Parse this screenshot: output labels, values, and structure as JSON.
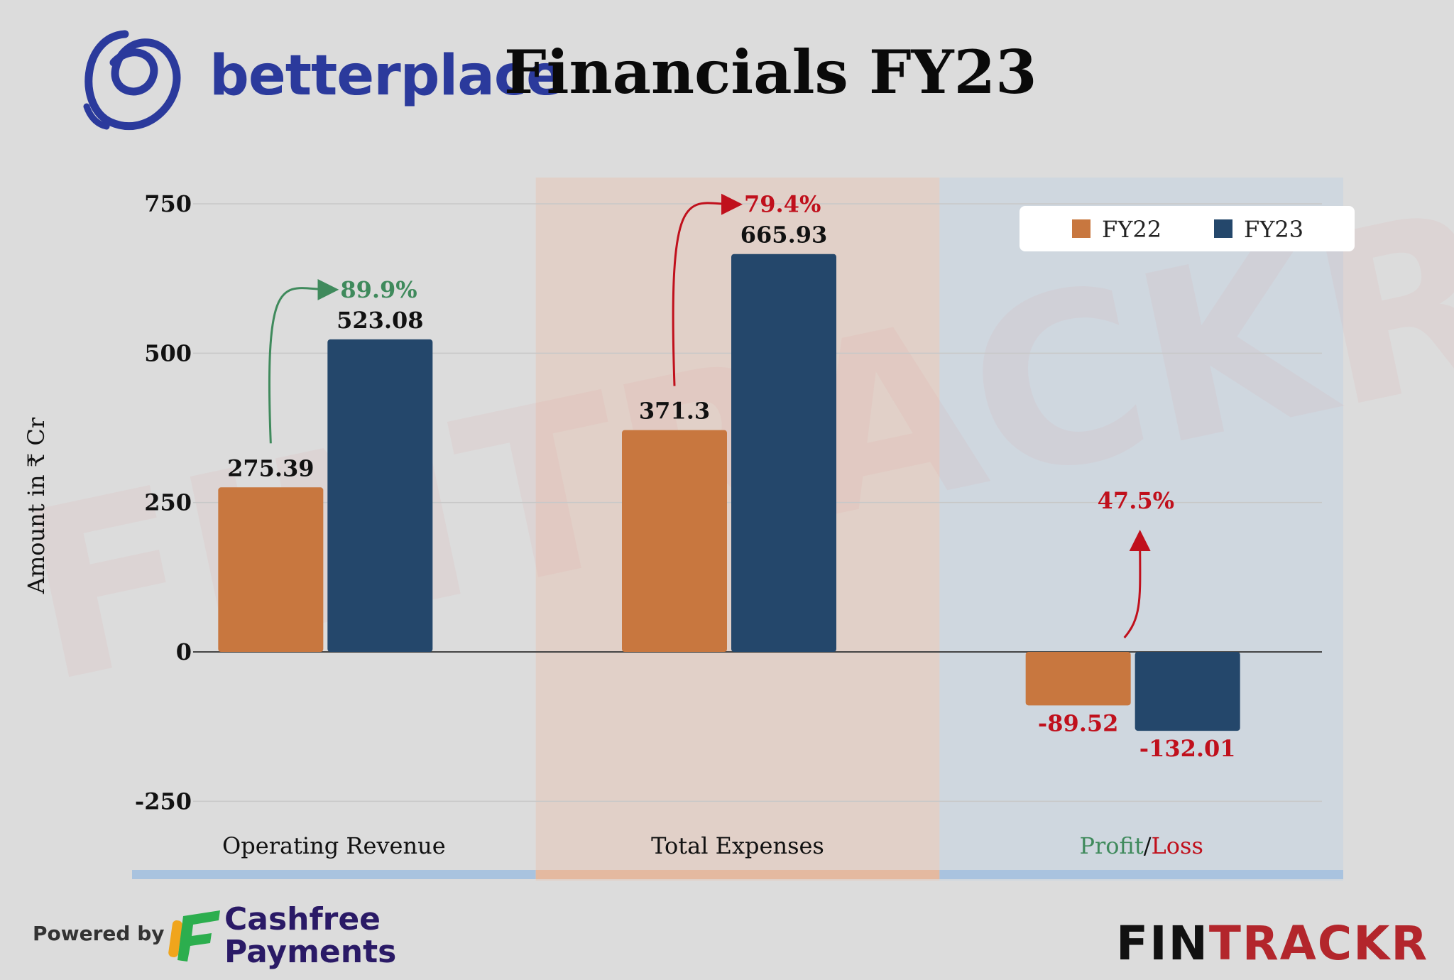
{
  "header": {
    "brand": "betterplace",
    "title": "Financials FY23"
  },
  "footer": {
    "powered_by": "Powered by",
    "sponsor_line1": "Cashfree",
    "sponsor_line2": "Payments",
    "publisher_part1": "FIN",
    "publisher_part2": "TRACKR"
  },
  "watermark": "FINTRACKR",
  "colors": {
    "fy22": "#c8773f",
    "fy23": "#24476b",
    "growth_green": "#3f8a5c",
    "loss_red": "#c0101c",
    "brand_blue": "#2b3a9c",
    "band_revenue": "#a9c3df",
    "band_expenses": "#e4b9a0",
    "band_profit": "#a9c3df"
  },
  "chart_data": {
    "type": "bar",
    "ylabel": "Amount in ₹ Cr",
    "ylim": [
      -250,
      750
    ],
    "yticks": [
      {
        "value": 750,
        "label": "750"
      },
      {
        "value": 500,
        "label": "500"
      },
      {
        "value": 250,
        "label": "250"
      },
      {
        "value": 0,
        "label": "0"
      },
      {
        "value": -250,
        "label": "-250"
      }
    ],
    "grid": true,
    "legend_position": "top-right",
    "categories": [
      "Operating Revenue",
      "Total Expenses",
      "Profit/Loss"
    ],
    "category_label_parts": [
      [
        {
          "text": "Operating Revenue",
          "color": "#111111"
        }
      ],
      [
        {
          "text": "Total Expenses",
          "color": "#111111"
        }
      ],
      [
        {
          "text": "Profit",
          "color": "#3f8a5c"
        },
        {
          "text": "/",
          "color": "#111111"
        },
        {
          "text": "Loss",
          "color": "#c0101c"
        }
      ]
    ],
    "series": [
      {
        "name": "FY22",
        "color": "#c8773f",
        "values": [
          275.39,
          371.3,
          -89.52
        ],
        "labels": [
          "275.39",
          "371.3",
          "-89.52"
        ]
      },
      {
        "name": "FY23",
        "color": "#24476b",
        "values": [
          523.08,
          665.93,
          -132.01
        ],
        "labels": [
          "523.08",
          "665.93",
          "-132.01"
        ]
      }
    ],
    "changes": [
      {
        "label": "89.9%",
        "color": "#3f8a5c"
      },
      {
        "label": "79.4%",
        "color": "#c0101c"
      },
      {
        "label": "47.5%",
        "color": "#c0101c"
      }
    ]
  }
}
